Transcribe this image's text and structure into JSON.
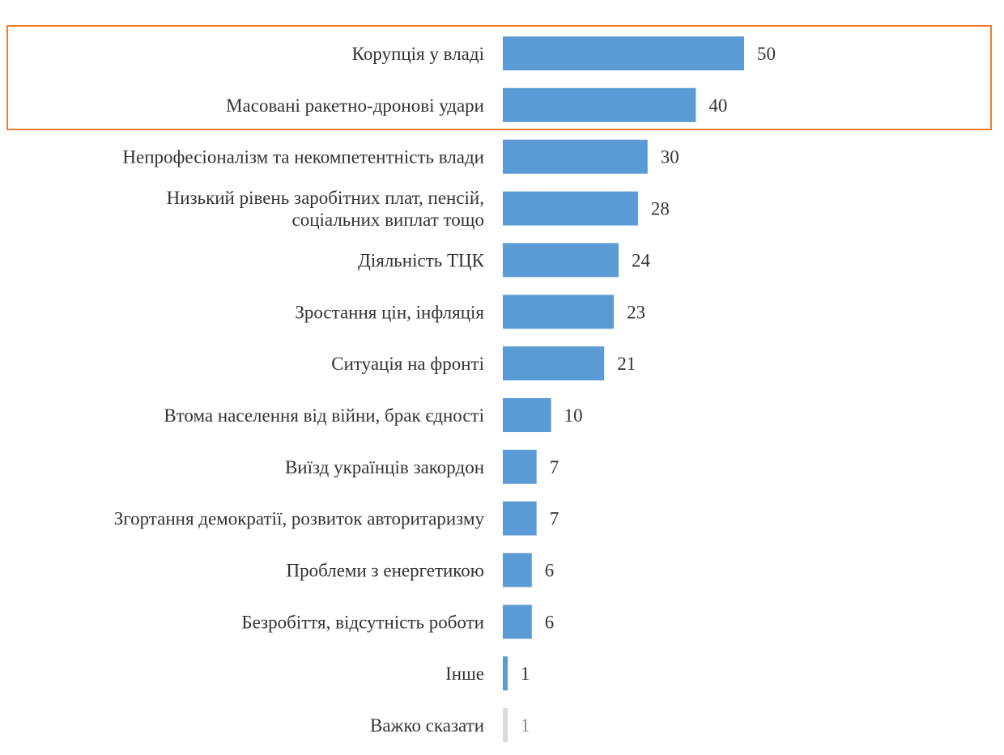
{
  "chart_data": {
    "type": "bar",
    "orientation": "horizontal",
    "title": "",
    "xlabel": "",
    "ylabel": "",
    "xlim": [
      0,
      50
    ],
    "grid": false,
    "legend": "none",
    "colors": {
      "bar": "#5b9bd5",
      "bar_muted": "#d9d9d9",
      "highlight_frame": "#ed7d31"
    },
    "highlighted_categories": [
      "Корупція у владі",
      "Масовані ракетно-дронові удари"
    ],
    "categories": [
      [
        "Корупція у владі"
      ],
      [
        "Масовані ракетно-дронові удари"
      ],
      [
        "Непрофесіоналізм та некомпетентність влади"
      ],
      [
        "Низький рівень заробітних плат, пенсій,",
        "соціальних виплат тощо"
      ],
      [
        "Діяльність ТЦК"
      ],
      [
        "Зростання цін, інфляція"
      ],
      [
        "Ситуація на фронті"
      ],
      [
        "Втома населення від війни, брак єдності"
      ],
      [
        "Виїзд українців закордон"
      ],
      [
        "Згортання демократії, розвиток авторитаризму"
      ],
      [
        "Проблеми з енергетикою"
      ],
      [
        "Безробіття, відсутність роботи"
      ],
      [
        "Інше"
      ],
      [
        "Важко сказати"
      ]
    ],
    "values": [
      50,
      40,
      30,
      28,
      24,
      23,
      21,
      10,
      7,
      7,
      6,
      6,
      1,
      1
    ],
    "muted": [
      false,
      false,
      false,
      false,
      false,
      false,
      false,
      false,
      false,
      false,
      false,
      false,
      false,
      true
    ]
  }
}
